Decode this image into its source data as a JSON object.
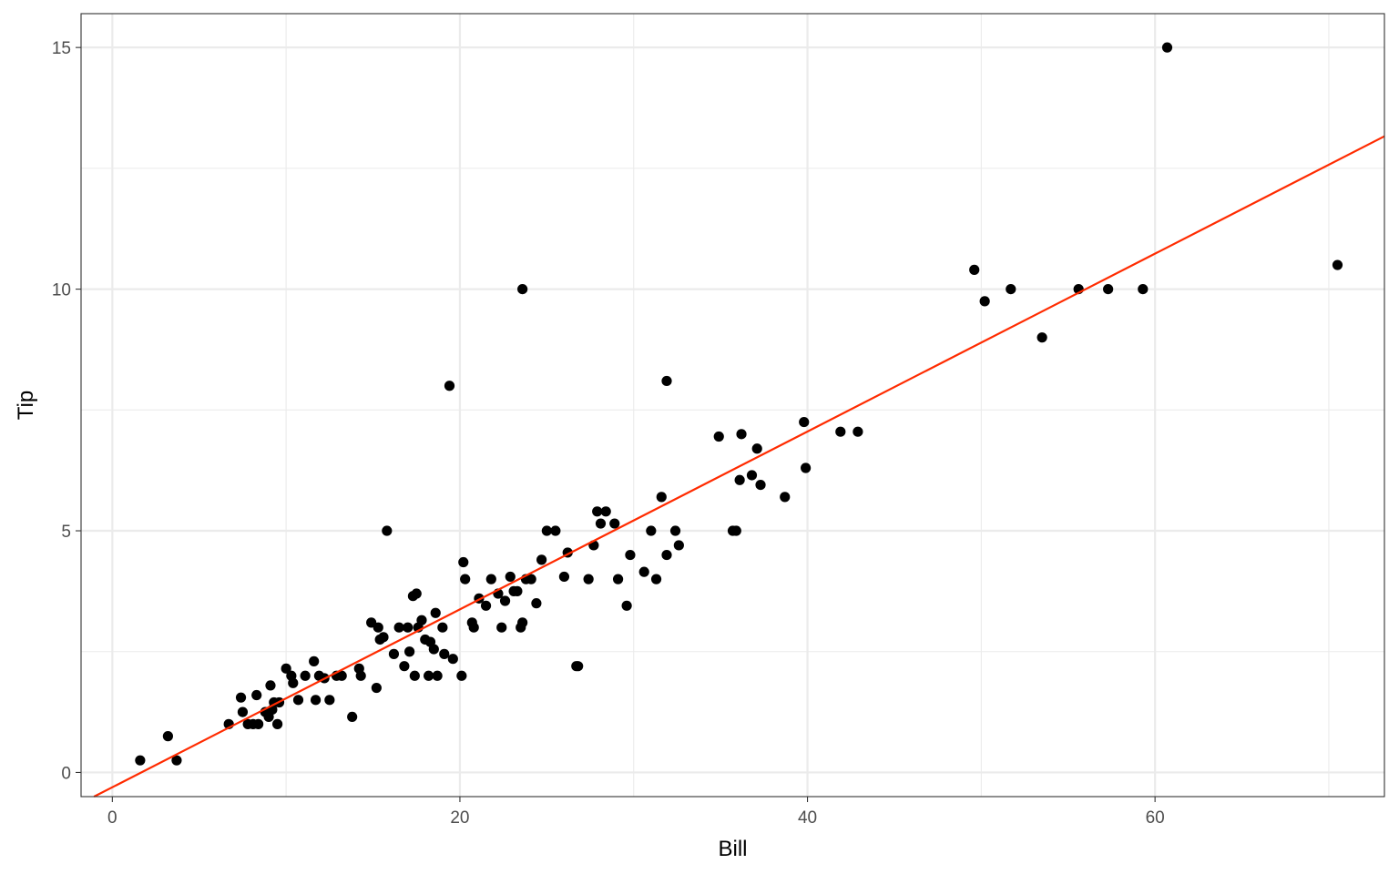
{
  "chart_data": {
    "type": "scatter",
    "xlabel": "Bill",
    "ylabel": "Tip",
    "xlim": [
      -1.8,
      73.2
    ],
    "ylim": [
      -0.5,
      15.7
    ],
    "x_ticks": [
      0,
      20,
      40,
      60
    ],
    "x_tick_labels": [
      "0",
      "20",
      "40",
      "60"
    ],
    "x_minor_ticks": [
      10,
      30,
      50,
      70
    ],
    "y_ticks": [
      0,
      5,
      10,
      15
    ],
    "y_tick_labels": [
      "0",
      "5",
      "10",
      "15"
    ],
    "y_minor_ticks": [
      2.5,
      7.5,
      12.5
    ],
    "grid": true,
    "point_color": "#000000",
    "line_color": "#ff2b00",
    "fit_line": {
      "intercept": -0.306,
      "slope": 0.184
    },
    "series": [
      {
        "x": [
          1.6,
          3.2,
          3.7,
          6.7,
          7.4,
          7.5,
          7.8,
          8.1,
          8.3,
          8.4,
          8.8,
          9.0,
          9.1,
          9.2,
          9.3,
          9.5,
          9.6,
          10.0,
          10.3,
          10.4,
          10.7,
          11.1,
          11.6,
          11.7,
          11.9,
          12.2,
          12.5,
          12.9,
          13.2,
          13.8,
          14.2,
          14.3,
          14.9,
          15.2,
          15.4,
          15.3,
          15.6,
          15.8,
          16.2,
          16.5,
          16.8,
          17.1,
          17.0,
          17.5,
          17.3,
          17.4,
          17.6,
          17.8,
          18.0,
          18.2,
          18.3,
          18.5,
          18.6,
          18.7,
          19.0,
          19.1,
          19.6,
          20.1,
          20.2,
          20.3,
          20.7,
          20.8,
          21.1,
          21.5,
          21.8,
          22.2,
          22.4,
          22.6,
          22.9,
          23.1,
          23.3,
          23.5,
          23.6,
          23.8,
          24.1,
          24.4,
          24.7,
          25.0,
          25.5,
          26.0,
          26.2,
          26.8,
          27.4,
          27.7,
          27.9,
          28.1,
          28.4,
          28.9,
          29.1,
          29.6,
          29.8,
          30.6,
          31.0,
          31.3,
          31.6,
          31.9,
          32.4,
          32.6,
          34.9,
          35.7,
          35.9,
          36.1,
          36.2,
          36.8,
          37.1,
          37.3,
          38.7,
          39.8,
          39.9,
          41.9,
          42.9,
          49.6,
          50.2,
          51.7,
          53.5,
          55.6,
          57.3,
          59.3,
          60.7,
          70.5,
          23.6,
          19.4,
          31.9,
          26.7
        ],
        "y": [
          0.25,
          0.75,
          0.25,
          1.0,
          1.55,
          1.25,
          1.0,
          1.0,
          1.6,
          1.0,
          1.25,
          1.15,
          1.8,
          1.3,
          1.45,
          1.0,
          1.45,
          2.15,
          2.0,
          1.85,
          1.5,
          2.0,
          2.3,
          1.5,
          2.0,
          1.95,
          1.5,
          2.0,
          2.0,
          1.15,
          2.15,
          2.0,
          3.1,
          1.75,
          2.75,
          3.0,
          2.8,
          5.0,
          2.45,
          3.0,
          2.2,
          2.5,
          3.0,
          3.7,
          3.65,
          2.0,
          3.0,
          3.15,
          2.75,
          2.0,
          2.7,
          2.55,
          3.3,
          2.0,
          3.0,
          2.45,
          2.35,
          2.0,
          4.35,
          4.0,
          3.1,
          3.0,
          3.6,
          3.45,
          4.0,
          3.7,
          3.0,
          3.55,
          4.05,
          3.75,
          3.75,
          3.0,
          3.1,
          4.0,
          4.0,
          3.5,
          4.4,
          5.0,
          5.0,
          4.05,
          4.55,
          2.2,
          4.0,
          4.7,
          5.4,
          5.15,
          5.4,
          5.15,
          4.0,
          3.45,
          4.5,
          4.15,
          5.0,
          4.0,
          5.7,
          4.5,
          5.0,
          4.7,
          6.95,
          5.0,
          5.0,
          6.05,
          7.0,
          6.15,
          6.7,
          5.95,
          5.7,
          7.25,
          6.3,
          7.05,
          7.05,
          10.4,
          9.75,
          10.0,
          9.0,
          10.0,
          10.0,
          10.0,
          15.0,
          10.5,
          10.0,
          8.0,
          8.1,
          2.2
        ]
      }
    ]
  }
}
